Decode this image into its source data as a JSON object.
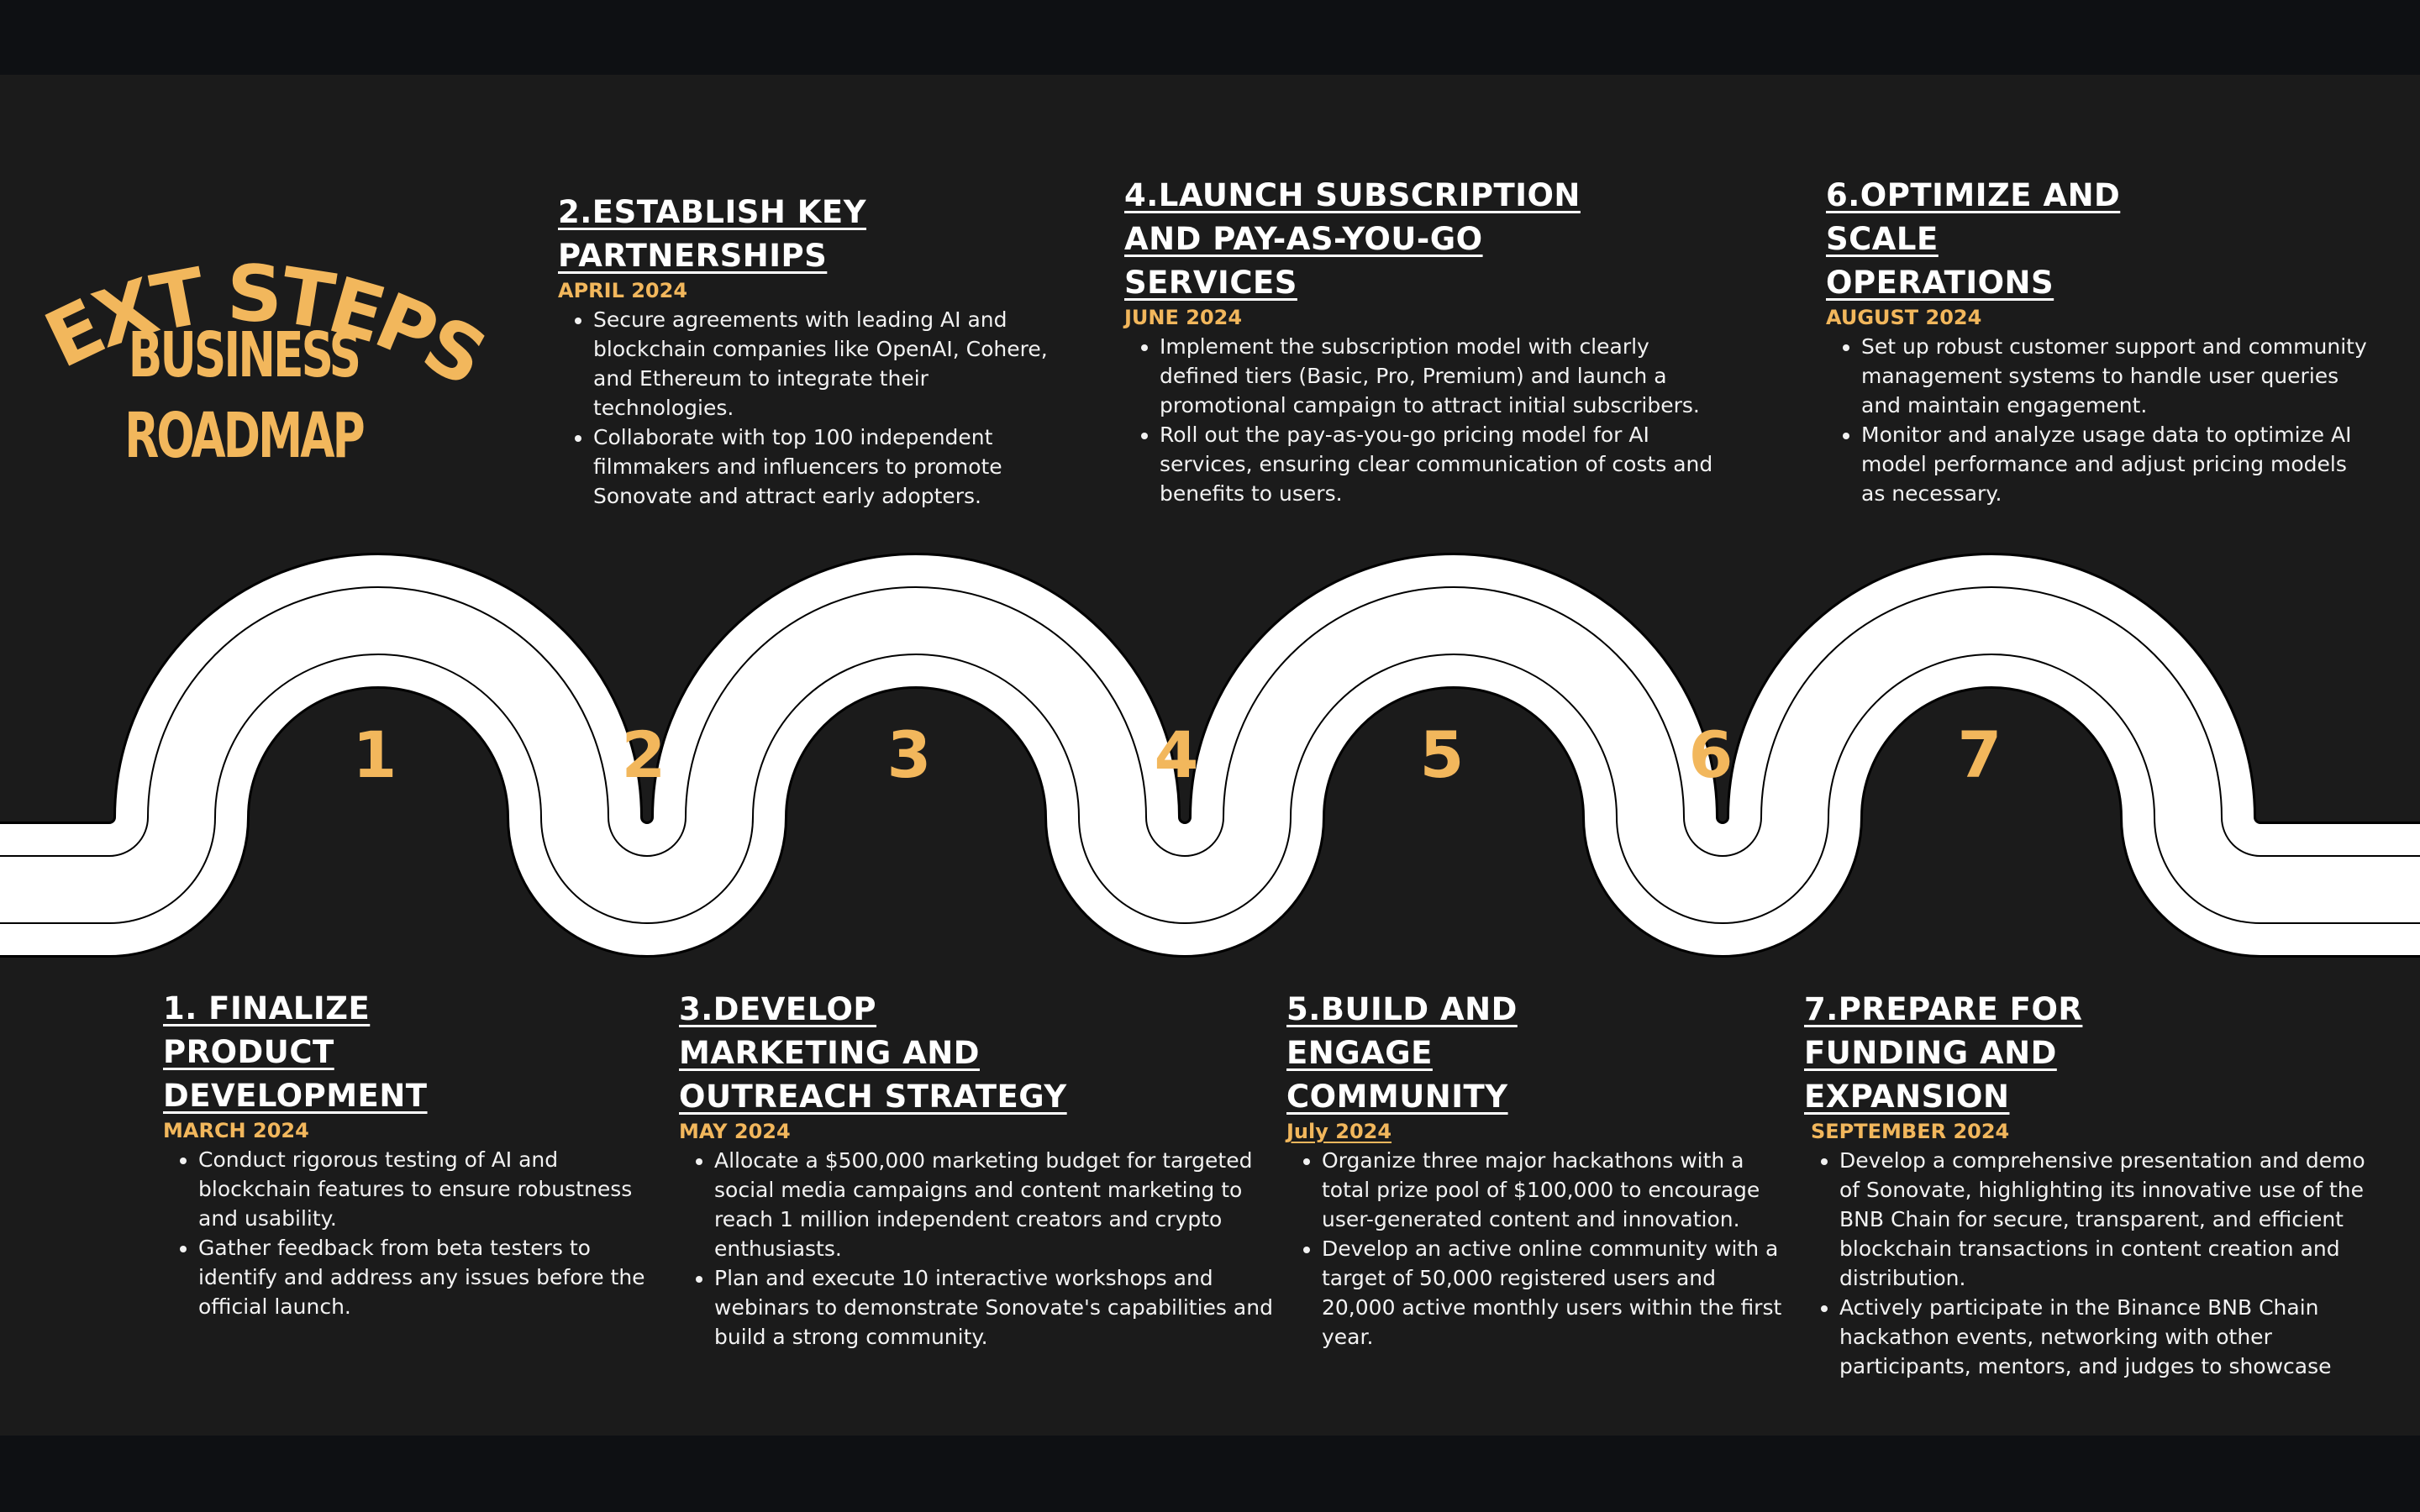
{
  "header": {
    "title": "NEXT STEPS:",
    "subtitle_line1": "BUSINESS",
    "subtitle_line2": "ROADMAP"
  },
  "colors": {
    "accent": "#f2b75c",
    "background": "#1b1b1b",
    "road": "#ffffff"
  },
  "road_numbers": [
    "1",
    "2",
    "3",
    "4",
    "5",
    "6",
    "7"
  ],
  "steps": [
    {
      "title_lines": [
        "1. FINALIZE",
        "PRODUCT",
        "DEVELOPMENT"
      ],
      "date": "MARCH 2024",
      "bullets": [
        "Conduct rigorous testing of AI and blockchain features to ensure robustness and usability.",
        "Gather feedback from beta testers to identify and address any issues before the official launch."
      ]
    },
    {
      "title_lines": [
        "2.ESTABLISH KEY",
        "PARTNERSHIPS"
      ],
      "date": "APRIL 2024",
      "bullets": [
        "Secure agreements with leading AI and blockchain companies like OpenAI, Cohere, and Ethereum to integrate their technologies.",
        "Collaborate with top 100 independent filmmakers and influencers to promote Sonovate and attract early adopters."
      ]
    },
    {
      "title_lines": [
        "3.DEVELOP",
        "MARKETING AND",
        "OUTREACH STRATEGY"
      ],
      "date": "MAY 2024",
      "bullets": [
        "Allocate a $500,000 marketing budget for targeted social media campaigns and content marketing to reach 1 million independent creators and crypto enthusiasts.",
        "Plan and execute 10 interactive workshops and webinars to demonstrate Sonovate's capabilities and build a strong community."
      ]
    },
    {
      "title_lines": [
        "4.LAUNCH SUBSCRIPTION",
        "AND PAY-AS-YOU-GO",
        "SERVICES"
      ],
      "date": "JUNE 2024",
      "bullets": [
        "Implement the subscription model with clearly defined tiers (Basic, Pro, Premium) and launch a promotional campaign to attract initial subscribers.",
        "Roll out the pay-as-you-go pricing model for AI services, ensuring clear communication of costs and benefits to users."
      ]
    },
    {
      "title_lines": [
        "5.BUILD AND",
        "ENGAGE",
        "COMMUNITY"
      ],
      "date": "July 2024",
      "bullets": [
        "Organize three major hackathons with a total prize pool of $100,000 to encourage user-generated content and innovation.",
        "Develop an active online community with a target of 50,000 registered users and 20,000 active monthly users within the first year."
      ]
    },
    {
      "title_lines": [
        "6.OPTIMIZE AND",
        "SCALE",
        "OPERATIONS"
      ],
      "date": "AUGUST 2024",
      "bullets": [
        "Set up robust customer support and community management systems to handle user queries and maintain engagement.",
        "Monitor and analyze usage data to optimize AI model performance and adjust pricing models as necessary."
      ]
    },
    {
      "title_lines": [
        "7.PREPARE FOR",
        "FUNDING AND",
        "EXPANSION"
      ],
      "date": "SEPTEMBER 2024",
      "bullets": [
        "Develop a comprehensive presentation and demo of Sonovate, highlighting its innovative use of the BNB Chain for secure, transparent, and efficient blockchain transactions in content creation and distribution.",
        "Actively participate in the Binance BNB Chain hackathon events, networking with other participants, mentors, and judges to showcase"
      ]
    }
  ]
}
